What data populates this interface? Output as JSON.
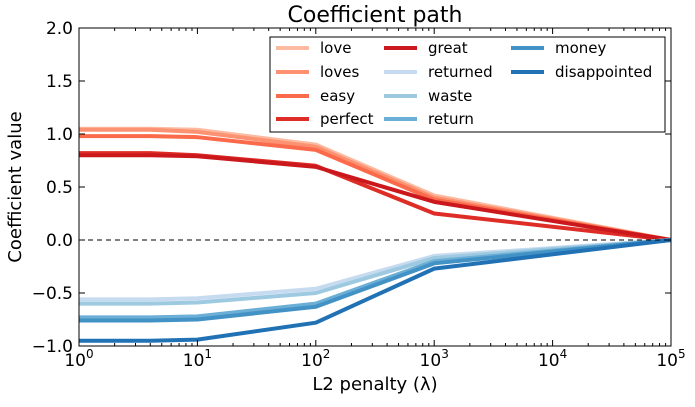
{
  "chart_data": {
    "type": "line",
    "title": "Coefficient path",
    "xlabel": "L2 penalty (λ)",
    "ylabel": "Coefficient value",
    "xscale": "log",
    "xlim": [
      1,
      100000
    ],
    "ylim": [
      -1.0,
      2.0
    ],
    "x_ticks": [
      {
        "value": 1,
        "base": "10",
        "exp": "0"
      },
      {
        "value": 10,
        "base": "10",
        "exp": "1"
      },
      {
        "value": 100,
        "base": "10",
        "exp": "2"
      },
      {
        "value": 1000,
        "base": "10",
        "exp": "3"
      },
      {
        "value": 10000,
        "base": "10",
        "exp": "4"
      },
      {
        "value": 100000,
        "base": "10",
        "exp": "5"
      }
    ],
    "y_ticks": [
      {
        "value": -1.0,
        "label": "−1.0"
      },
      {
        "value": -0.5,
        "label": "−0.5"
      },
      {
        "value": 0.0,
        "label": "0.0"
      },
      {
        "value": 0.5,
        "label": "0.5"
      },
      {
        "value": 1.0,
        "label": "1.0"
      },
      {
        "value": 1.5,
        "label": "1.5"
      },
      {
        "value": 2.0,
        "label": "2.0"
      }
    ],
    "grid": false,
    "reference_line": {
      "y": 0.0,
      "style": "dashed",
      "color": "#000000"
    },
    "legend": {
      "placement": "top-right",
      "columns": 3
    },
    "x": [
      1,
      4,
      10,
      100,
      1000,
      100000
    ],
    "series": [
      {
        "name": "love",
        "color": "#fcbba1",
        "values": [
          1.05,
          1.05,
          1.04,
          0.9,
          0.42,
          0.0
        ]
      },
      {
        "name": "loves",
        "color": "#fc9272",
        "values": [
          1.04,
          1.04,
          1.02,
          0.88,
          0.4,
          0.0
        ]
      },
      {
        "name": "easy",
        "color": "#fb6a4a",
        "values": [
          0.98,
          0.98,
          0.97,
          0.85,
          0.38,
          0.0
        ]
      },
      {
        "name": "perfect",
        "color": "#de2d26",
        "values": [
          0.82,
          0.82,
          0.8,
          0.7,
          0.25,
          0.0
        ]
      },
      {
        "name": "great",
        "color": "#cb181d",
        "values": [
          0.8,
          0.8,
          0.79,
          0.69,
          0.36,
          0.0
        ]
      },
      {
        "name": "returned",
        "color": "#c6dbef",
        "values": [
          -0.56,
          -0.56,
          -0.55,
          -0.46,
          -0.15,
          0.0
        ]
      },
      {
        "name": "waste",
        "color": "#9ecae1",
        "values": [
          -0.6,
          -0.6,
          -0.59,
          -0.5,
          -0.17,
          0.0
        ]
      },
      {
        "name": "return",
        "color": "#6baed6",
        "values": [
          -0.73,
          -0.73,
          -0.72,
          -0.6,
          -0.2,
          0.0
        ]
      },
      {
        "name": "money",
        "color": "#4292c6",
        "values": [
          -0.76,
          -0.76,
          -0.75,
          -0.63,
          -0.22,
          0.0
        ]
      },
      {
        "name": "disappointed",
        "color": "#2171b5",
        "values": [
          -0.95,
          -0.95,
          -0.94,
          -0.78,
          -0.27,
          0.0
        ]
      }
    ]
  }
}
